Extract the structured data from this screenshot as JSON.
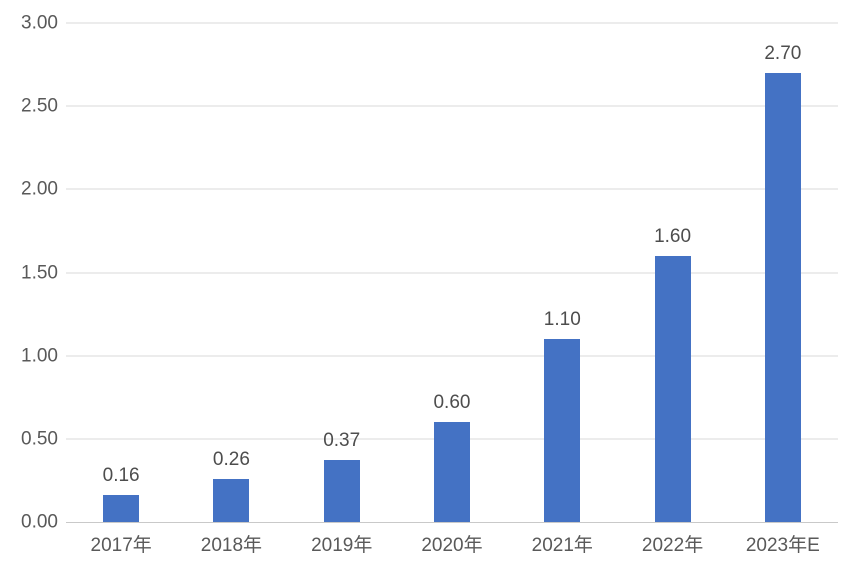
{
  "chart_data": {
    "type": "bar",
    "title": "",
    "xlabel": "",
    "ylabel": "",
    "categories": [
      "2017年",
      "2018年",
      "2019年",
      "2020年",
      "2021年",
      "2022年",
      "2023年E"
    ],
    "values": [
      0.16,
      0.26,
      0.37,
      0.6,
      1.1,
      1.6,
      2.7
    ],
    "value_labels": [
      "0.16",
      "0.26",
      "0.37",
      "0.60",
      "1.10",
      "1.60",
      "2.70"
    ],
    "ylim": [
      0,
      3.0
    ],
    "ytick_interval": 0.5,
    "yticks": [
      0.0,
      0.5,
      1.0,
      1.5,
      2.0,
      2.5,
      3.0
    ],
    "ytick_labels": [
      "0.00",
      "0.50",
      "1.00",
      "1.50",
      "2.00",
      "2.50",
      "3.00"
    ],
    "grid": true,
    "legend": false,
    "colors": {
      "bar": "#4472C4",
      "background": "#FFFFFF",
      "gridline": "#DADADA",
      "axis_line": "#C9C9C9",
      "tick_label": "#595959",
      "value_label": "#4D4D4D"
    }
  }
}
